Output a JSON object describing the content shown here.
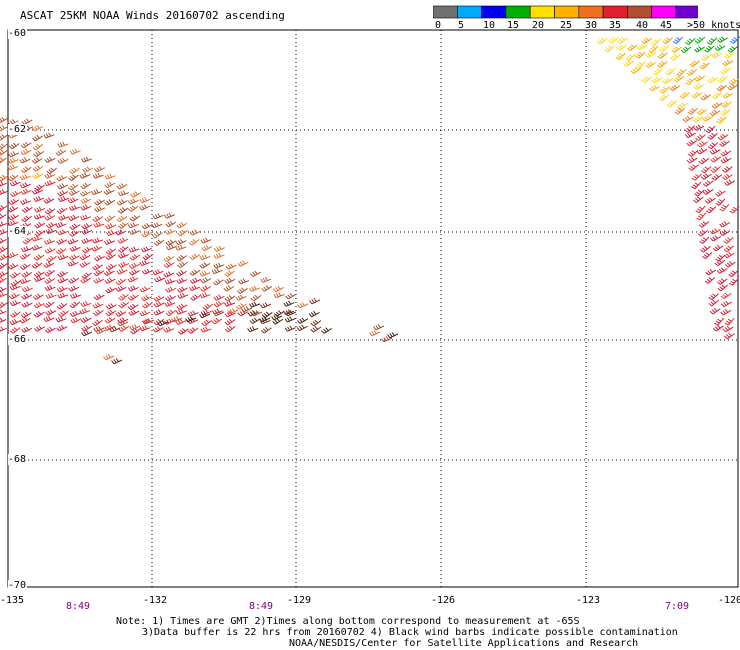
{
  "title": "ASCAT 25KM NOAA Winds 20160702 ascending",
  "legend": {
    "colors": [
      "#707070",
      "#00aaff",
      "#0000ee",
      "#00b000",
      "#ffe000",
      "#ffb000",
      "#f07020",
      "#e02030",
      "#b05030",
      "#ff00ff",
      "#7000d0"
    ],
    "labels": [
      "0",
      "5",
      "10",
      "15",
      "20",
      "25",
      "30",
      "35",
      "40",
      "45",
      ">50 knots"
    ]
  },
  "latitudes": [
    "-60",
    "-62",
    "-64",
    "-66",
    "-68",
    "-70"
  ],
  "longitudes": [
    "-135",
    "-132",
    "-129",
    "-126",
    "-123",
    "-120"
  ],
  "pass_times": [
    "8:49",
    "8:49",
    "7:09"
  ],
  "notes": {
    "line1": "Note: 1) Times are GMT 2)Times along bottom correspond to measurement at -65S",
    "line2": "3)Data buffer is 22 hrs from 20160702 4) Black wind barbs indicate possible contamination",
    "line3": "NOAA/NESDIS/Center for Satellite Applications and Research"
  }
}
